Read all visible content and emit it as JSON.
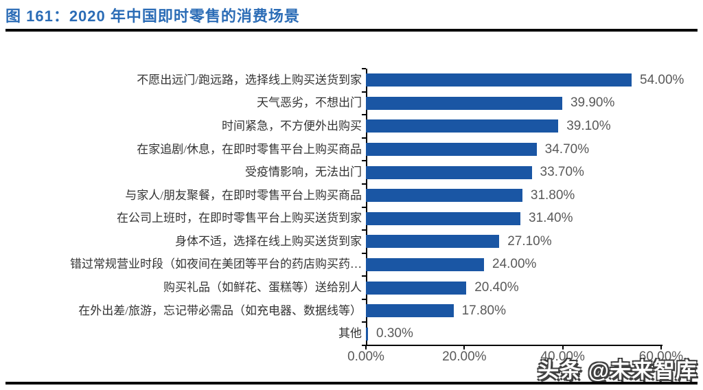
{
  "header": {
    "title": "图 161：2020 年中国即时零售的消费场景"
  },
  "chart_data": {
    "type": "bar",
    "orientation": "horizontal",
    "title": "2020 年中国即时零售的消费场景",
    "categories": [
      "不愿出远门/跑远路，选择线上购买送货到家",
      "天气恶劣，不想出门",
      "时间紧急，不方便外出购买",
      "在家追剧/休息，在即时零售平台上购买商品",
      "受疫情影响，无法出门",
      "与家人/朋友聚餐，在即时零售平台上购买商品",
      "在公司上班时，在即时零售平台上购买送货到家",
      "身体不适，选择在线上购买送货到家",
      "错过常规营业时段（如夜间在美团等平台的药店购买药…",
      "购买礼品（如鲜花、蛋糕等）送给别人",
      "在外出差/旅游，忘记带必需品（如充电器、数据线等）",
      "其他"
    ],
    "values": [
      54.0,
      39.9,
      39.1,
      34.7,
      33.7,
      31.8,
      31.4,
      27.1,
      24.0,
      20.4,
      17.8,
      0.3
    ],
    "value_labels": [
      "54.00%",
      "39.90%",
      "39.10%",
      "34.70%",
      "33.70%",
      "31.80%",
      "31.40%",
      "27.10%",
      "24.00%",
      "20.40%",
      "17.80%",
      "0.30%"
    ],
    "x_ticks": [
      "0.00%",
      "20.00%",
      "40.00%",
      "60.00%"
    ],
    "xlim": [
      0,
      60
    ],
    "grid": false,
    "legend": "none",
    "bar_color": "#1a56a4",
    "axis_color": "#000000",
    "category_label_color": "#333333",
    "value_label_color": "#595959"
  },
  "watermark": {
    "text": "头条 @未来智库"
  }
}
